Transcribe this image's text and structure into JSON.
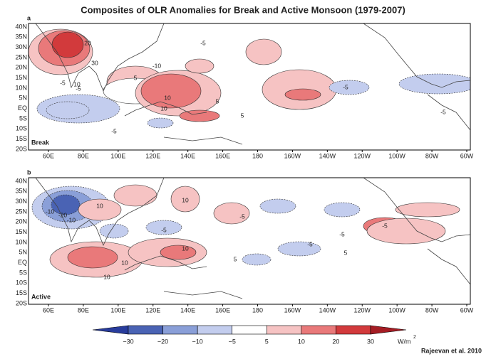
{
  "title": "Composites of OLR Anomalies for Break and Active Monsoon (1979-2007)",
  "panels": [
    {
      "letter": "a",
      "name": "Break",
      "contour_labels": [
        "20",
        "30",
        "10",
        "-5",
        "-5",
        "-10",
        "10",
        "5",
        "-5",
        "-5",
        "10",
        "5",
        "-5",
        "-5",
        "5"
      ]
    },
    {
      "letter": "b",
      "name": "Active",
      "contour_labels": [
        "-10",
        "-20",
        "-10",
        "10",
        "10",
        "-5",
        "-5",
        "10",
        "10",
        "10",
        "-5",
        "5",
        "-5",
        "5",
        "-5"
      ]
    }
  ],
  "lat_labels": [
    "40N",
    "35N",
    "30N",
    "25N",
    "20N",
    "15N",
    "10N",
    "5N",
    "EQ",
    "5S",
    "10S",
    "15S",
    "20S"
  ],
  "lon_labels": [
    "60E",
    "80E",
    "100E",
    "120E",
    "140E",
    "160E",
    "180",
    "160W",
    "140W",
    "120W",
    "100W",
    "80W",
    "60W"
  ],
  "colorbar": {
    "ticks": [
      "−30",
      "−20",
      "−10",
      "−5",
      "5",
      "10",
      "20",
      "30"
    ],
    "colors": [
      "#283c9c",
      "#4a63b4",
      "#8a9fd8",
      "#c3cdee",
      "#ffffff",
      "#f6c3c3",
      "#e9797a",
      "#d23a3c",
      "#a51d24"
    ],
    "unit": "W/m",
    "unit_power": "2"
  },
  "credit": "Rajeevan et al. 2010"
}
